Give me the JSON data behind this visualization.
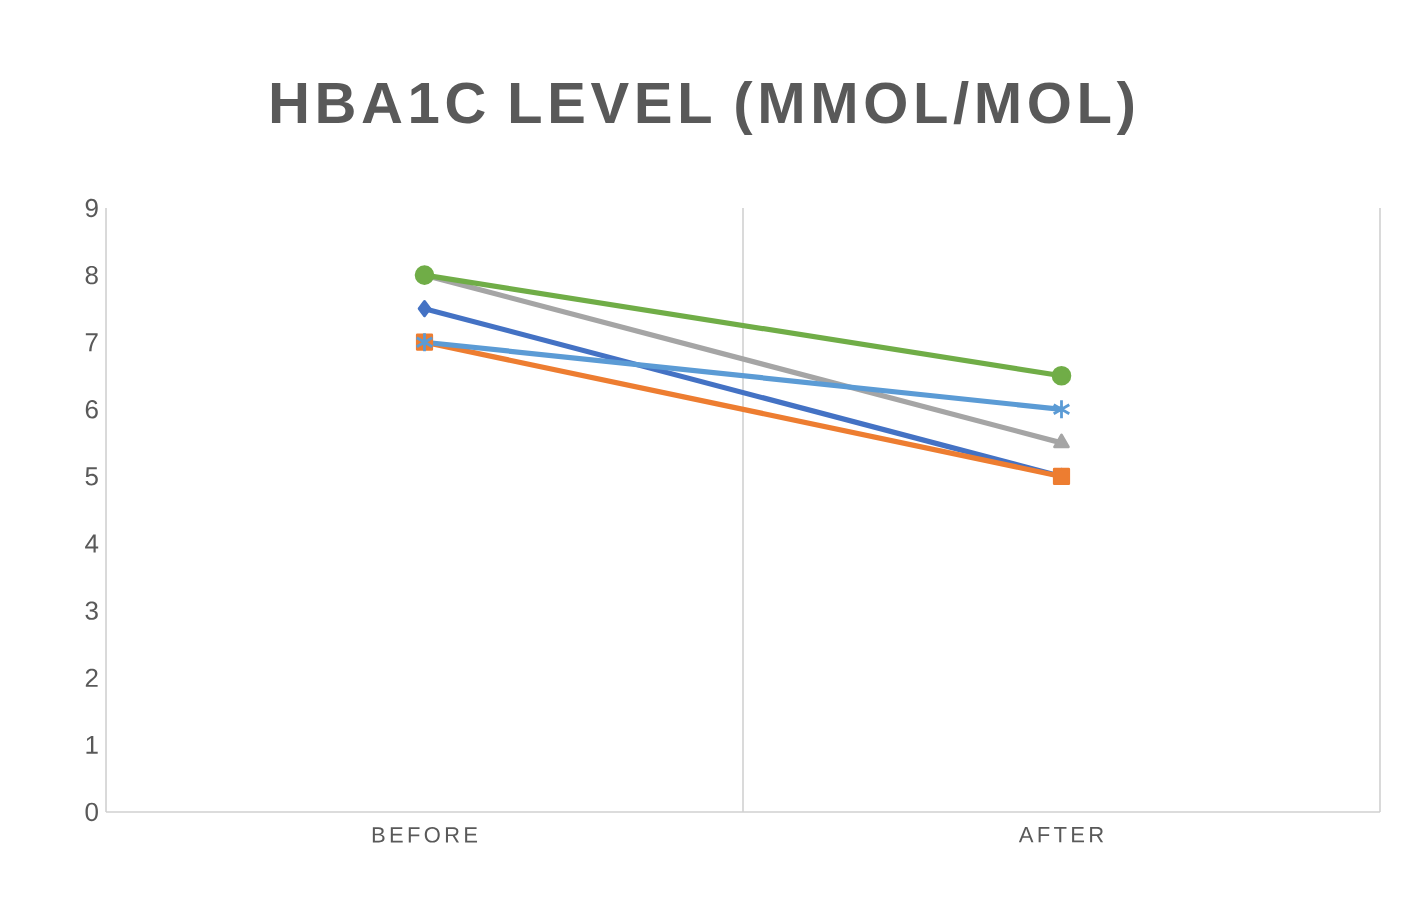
{
  "chart_data": {
    "type": "line",
    "title": "HBA1C LEVEL (MMOL/MOL)",
    "categories": [
      "BEFORE",
      "AFTER"
    ],
    "series": [
      {
        "color": "#4472c4",
        "values": [
          7.5,
          5
        ],
        "marker": "diamond"
      },
      {
        "color": "#ed7d31",
        "values": [
          7,
          5
        ],
        "marker": "square"
      },
      {
        "color": "#a5a5a5",
        "values": [
          8,
          5.5
        ],
        "marker": "triangle"
      },
      {
        "color": "#5b9bd5",
        "values": [
          7,
          6
        ],
        "marker": "cross"
      },
      {
        "color": "#70ad47",
        "values": [
          8,
          6.5
        ],
        "marker": "circle"
      }
    ],
    "ylim": [
      0,
      9
    ],
    "yticks": [
      0,
      1,
      2,
      3,
      4,
      5,
      6,
      7,
      8,
      9
    ],
    "grid": "x",
    "line_style": "solid"
  }
}
